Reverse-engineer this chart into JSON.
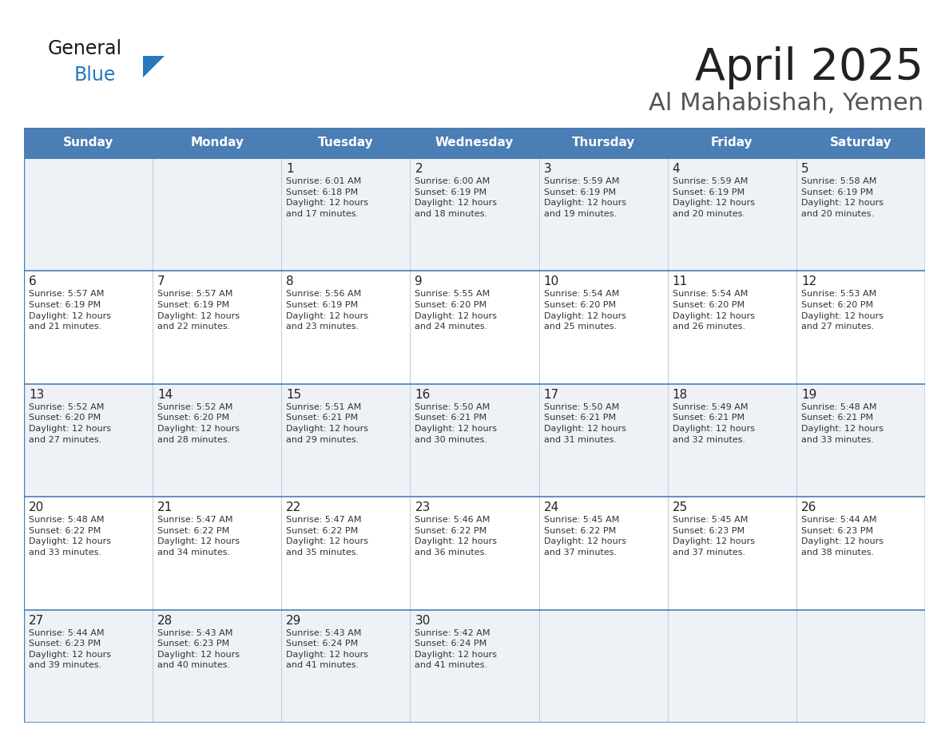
{
  "title": "April 2025",
  "subtitle": "Al Mahabishah, Yemen",
  "days_of_week": [
    "Sunday",
    "Monday",
    "Tuesday",
    "Wednesday",
    "Thursday",
    "Friday",
    "Saturday"
  ],
  "header_bg": "#4a7eb5",
  "header_text": "#ffffff",
  "row_bg_odd": "#eef2f7",
  "row_bg_even": "#ffffff",
  "border_color": "#4a7eb5",
  "separator_color": "#c0c8d8",
  "text_color": "#333333",
  "day_num_color": "#222222",
  "logo_general_color": "#1a1a1a",
  "logo_blue_color": "#2878be",
  "logo_triangle_color": "#2878be",
  "calendar_data": [
    [
      "",
      "",
      "1\nSunrise: 6:01 AM\nSunset: 6:18 PM\nDaylight: 12 hours\nand 17 minutes.",
      "2\nSunrise: 6:00 AM\nSunset: 6:19 PM\nDaylight: 12 hours\nand 18 minutes.",
      "3\nSunrise: 5:59 AM\nSunset: 6:19 PM\nDaylight: 12 hours\nand 19 minutes.",
      "4\nSunrise: 5:59 AM\nSunset: 6:19 PM\nDaylight: 12 hours\nand 20 minutes.",
      "5\nSunrise: 5:58 AM\nSunset: 6:19 PM\nDaylight: 12 hours\nand 20 minutes."
    ],
    [
      "6\nSunrise: 5:57 AM\nSunset: 6:19 PM\nDaylight: 12 hours\nand 21 minutes.",
      "7\nSunrise: 5:57 AM\nSunset: 6:19 PM\nDaylight: 12 hours\nand 22 minutes.",
      "8\nSunrise: 5:56 AM\nSunset: 6:19 PM\nDaylight: 12 hours\nand 23 minutes.",
      "9\nSunrise: 5:55 AM\nSunset: 6:20 PM\nDaylight: 12 hours\nand 24 minutes.",
      "10\nSunrise: 5:54 AM\nSunset: 6:20 PM\nDaylight: 12 hours\nand 25 minutes.",
      "11\nSunrise: 5:54 AM\nSunset: 6:20 PM\nDaylight: 12 hours\nand 26 minutes.",
      "12\nSunrise: 5:53 AM\nSunset: 6:20 PM\nDaylight: 12 hours\nand 27 minutes."
    ],
    [
      "13\nSunrise: 5:52 AM\nSunset: 6:20 PM\nDaylight: 12 hours\nand 27 minutes.",
      "14\nSunrise: 5:52 AM\nSunset: 6:20 PM\nDaylight: 12 hours\nand 28 minutes.",
      "15\nSunrise: 5:51 AM\nSunset: 6:21 PM\nDaylight: 12 hours\nand 29 minutes.",
      "16\nSunrise: 5:50 AM\nSunset: 6:21 PM\nDaylight: 12 hours\nand 30 minutes.",
      "17\nSunrise: 5:50 AM\nSunset: 6:21 PM\nDaylight: 12 hours\nand 31 minutes.",
      "18\nSunrise: 5:49 AM\nSunset: 6:21 PM\nDaylight: 12 hours\nand 32 minutes.",
      "19\nSunrise: 5:48 AM\nSunset: 6:21 PM\nDaylight: 12 hours\nand 33 minutes."
    ],
    [
      "20\nSunrise: 5:48 AM\nSunset: 6:22 PM\nDaylight: 12 hours\nand 33 minutes.",
      "21\nSunrise: 5:47 AM\nSunset: 6:22 PM\nDaylight: 12 hours\nand 34 minutes.",
      "22\nSunrise: 5:47 AM\nSunset: 6:22 PM\nDaylight: 12 hours\nand 35 minutes.",
      "23\nSunrise: 5:46 AM\nSunset: 6:22 PM\nDaylight: 12 hours\nand 36 minutes.",
      "24\nSunrise: 5:45 AM\nSunset: 6:22 PM\nDaylight: 12 hours\nand 37 minutes.",
      "25\nSunrise: 5:45 AM\nSunset: 6:23 PM\nDaylight: 12 hours\nand 37 minutes.",
      "26\nSunrise: 5:44 AM\nSunset: 6:23 PM\nDaylight: 12 hours\nand 38 minutes."
    ],
    [
      "27\nSunrise: 5:44 AM\nSunset: 6:23 PM\nDaylight: 12 hours\nand 39 minutes.",
      "28\nSunrise: 5:43 AM\nSunset: 6:23 PM\nDaylight: 12 hours\nand 40 minutes.",
      "29\nSunrise: 5:43 AM\nSunset: 6:24 PM\nDaylight: 12 hours\nand 41 minutes.",
      "30\nSunrise: 5:42 AM\nSunset: 6:24 PM\nDaylight: 12 hours\nand 41 minutes.",
      "",
      "",
      ""
    ]
  ]
}
